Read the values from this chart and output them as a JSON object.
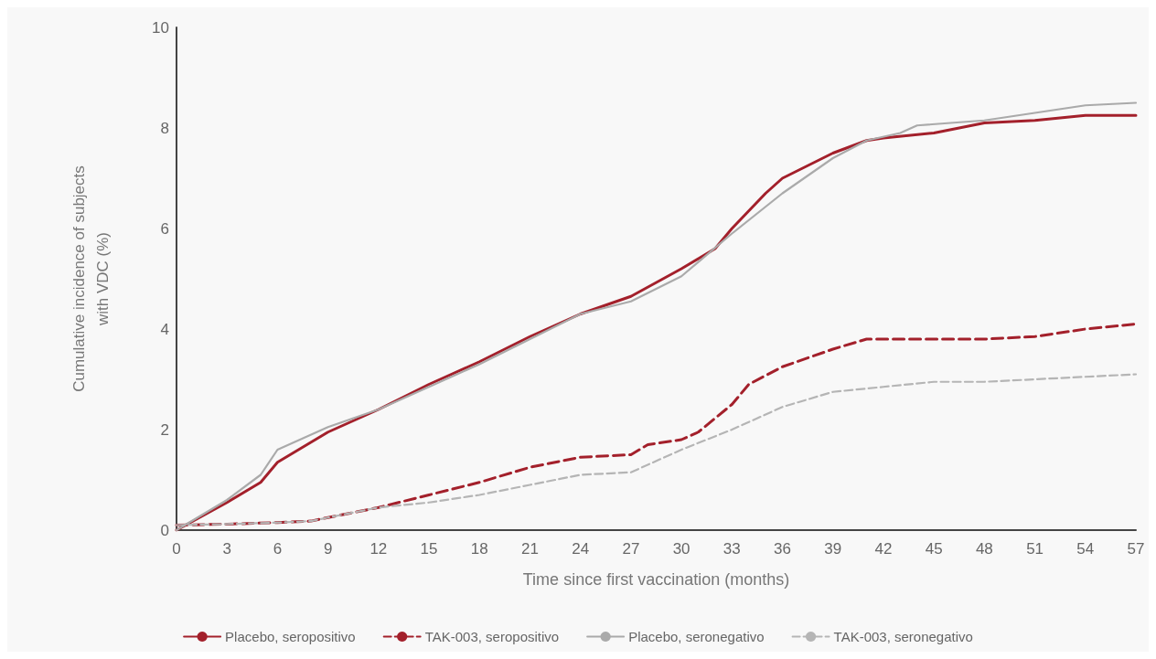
{
  "chart_data": {
    "type": "line",
    "xlabel": "Time since first vaccination (months)",
    "ylabel": "Cumulative incidence of subjects\nwith VDC (%)",
    "xlim": [
      0,
      57
    ],
    "xticks": [
      0,
      3,
      6,
      9,
      12,
      15,
      18,
      21,
      24,
      27,
      30,
      33,
      36,
      39,
      42,
      45,
      48,
      51,
      54,
      57
    ],
    "ylim": [
      0,
      10
    ],
    "yticks": [
      0,
      2,
      4,
      6,
      8,
      10
    ],
    "grid": false,
    "legend": "bottom",
    "marker": "none",
    "series": [
      {
        "name": "Placebo, seropositivo",
        "color": "#a3202b",
        "line_style": "solid",
        "x": [
          0,
          3,
          5,
          6,
          9,
          12,
          15,
          18,
          21,
          24,
          27,
          30,
          32,
          33,
          35,
          36,
          39,
          41,
          42,
          45,
          48,
          51,
          54,
          57
        ],
        "values": [
          0,
          0.55,
          0.95,
          1.35,
          1.95,
          2.4,
          2.9,
          3.35,
          3.85,
          4.3,
          4.65,
          5.2,
          5.6,
          6.0,
          6.7,
          7.0,
          7.5,
          7.75,
          7.8,
          7.9,
          8.1,
          8.15,
          8.25,
          8.25
        ]
      },
      {
        "name": "TAK-003, seropositivo",
        "color": "#a3202b",
        "line_style": "dashed",
        "x": [
          0,
          3,
          6,
          8,
          9,
          12,
          15,
          18,
          21,
          24,
          27,
          28,
          30,
          31,
          33,
          34,
          36,
          39,
          41,
          45,
          48,
          51,
          54,
          57
        ],
        "values": [
          0.1,
          0.12,
          0.15,
          0.18,
          0.25,
          0.45,
          0.7,
          0.95,
          1.25,
          1.45,
          1.5,
          1.7,
          1.8,
          1.95,
          2.5,
          2.9,
          3.25,
          3.6,
          3.8,
          3.8,
          3.8,
          3.85,
          4.0,
          4.1
        ]
      },
      {
        "name": "Placebo, seronegativo",
        "color": "#aaaaaa",
        "line_style": "solid",
        "x": [
          0,
          3,
          5,
          6,
          9,
          12,
          15,
          18,
          21,
          24,
          27,
          30,
          33,
          36,
          39,
          41,
          43,
          44,
          48,
          51,
          54,
          57
        ],
        "values": [
          0,
          0.6,
          1.1,
          1.6,
          2.05,
          2.4,
          2.85,
          3.3,
          3.8,
          4.3,
          4.55,
          5.05,
          5.9,
          6.7,
          7.4,
          7.75,
          7.9,
          8.05,
          8.15,
          8.3,
          8.45,
          8.5
        ]
      },
      {
        "name": "TAK-003, seronegativo",
        "color": "#b5b5b5",
        "line_style": "dashed",
        "x": [
          0,
          3,
          6,
          8,
          9,
          12,
          15,
          18,
          21,
          24,
          27,
          30,
          33,
          36,
          39,
          42,
          45,
          48,
          51,
          54,
          57
        ],
        "values": [
          0.1,
          0.12,
          0.15,
          0.18,
          0.25,
          0.45,
          0.55,
          0.7,
          0.9,
          1.1,
          1.15,
          1.6,
          2.0,
          2.45,
          2.75,
          2.85,
          2.95,
          2.95,
          3.0,
          3.05,
          3.1
        ]
      }
    ]
  }
}
